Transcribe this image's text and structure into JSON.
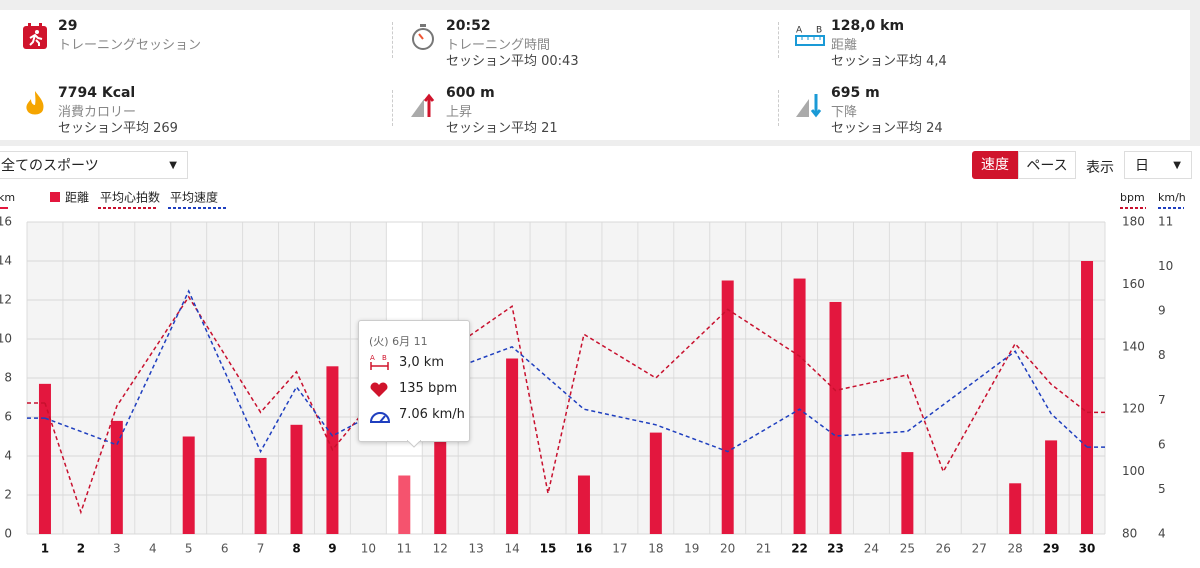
{
  "header": {
    "stats": [
      {
        "value": "29",
        "label": "トレーニングセッション"
      },
      {
        "value": "20:52",
        "label": "トレーニング時間",
        "sub": "セッション平均 00:43"
      },
      {
        "value": "128,0 km",
        "label": "距離",
        "sub": "セッション平均 4,4"
      },
      {
        "value": "7794 Kcal",
        "label": "消費カロリー",
        "sub": "セッション平均 269"
      },
      {
        "value": "600 m",
        "label": "上昇",
        "sub": "セッション平均 21"
      },
      {
        "value": "695 m",
        "label": "下降",
        "sub": "セッション平均 24"
      }
    ]
  },
  "controls": {
    "sport": "全てのスポーツ",
    "speed": "速度",
    "pace": "ペース",
    "view_label": "表示",
    "view": "日"
  },
  "tooltip": {
    "title": "(火) 6月 11",
    "distance": "3,0 km",
    "heart_rate": "135 bpm",
    "speed": "7.06 km/h"
  },
  "chart_data": {
    "type": "bar",
    "y_label": "km",
    "y2_label": "bpm",
    "y3_label": "km/h",
    "xlim": [
      0.5,
      30.5
    ],
    "xticks": [
      1,
      2,
      3,
      4,
      5,
      6,
      7,
      8,
      9,
      10,
      11,
      12,
      13,
      14,
      15,
      16,
      17,
      18,
      19,
      20,
      21,
      22,
      23,
      24,
      25,
      26,
      27,
      28,
      29,
      30
    ],
    "highlight_x": 11,
    "ylim": [
      0,
      16
    ],
    "yticks": [
      0,
      2,
      4,
      6,
      8,
      10,
      12,
      14,
      16
    ],
    "y2lim": [
      80,
      180
    ],
    "y2ticks": [
      80,
      100,
      120,
      140,
      160,
      180
    ],
    "y3lim": [
      4,
      11
    ],
    "y3ticks": [
      4,
      5,
      6,
      7,
      8,
      9,
      10,
      11
    ],
    "grid": true,
    "series": [
      {
        "name": "距離",
        "type": "bar",
        "axis": "y",
        "color": "#e3173e",
        "highlight_color": "#f5536e",
        "x": [
          1,
          3,
          5,
          7,
          8,
          9,
          11,
          12,
          14,
          16,
          18,
          20,
          22,
          23,
          25,
          28,
          29,
          30
        ],
        "values": [
          7.7,
          5.8,
          5.0,
          3.9,
          5.6,
          8.6,
          3.0,
          5.0,
          9.0,
          3.0,
          5.2,
          13.0,
          13.1,
          11.9,
          4.2,
          2.6,
          4.8,
          14.0
        ]
      },
      {
        "name": "平均心拍数",
        "type": "line",
        "axis": "y2",
        "color": "#c8102e",
        "x": [
          1,
          2,
          3,
          5,
          7,
          8,
          9,
          11,
          12,
          14,
          15,
          16,
          18,
          20,
          22,
          23,
          25,
          26,
          28,
          29,
          30
        ],
        "values": [
          122,
          87,
          121,
          156,
          119,
          132,
          107,
          135,
          137,
          153,
          93,
          144,
          130,
          152,
          137,
          126,
          131,
          100,
          141,
          128,
          119
        ]
      },
      {
        "name": "平均速度",
        "type": "line",
        "axis": "y3",
        "color": "#1f3fbf",
        "x": [
          1,
          3,
          5,
          7,
          8,
          9,
          11,
          12,
          14,
          16,
          18,
          20,
          22,
          23,
          25,
          28,
          29,
          30
        ],
        "values": [
          6.6,
          6.0,
          9.45,
          5.85,
          7.3,
          6.2,
          7.06,
          7.6,
          8.2,
          6.8,
          6.45,
          5.85,
          6.8,
          6.2,
          6.3,
          8.1,
          6.7,
          5.95
        ]
      }
    ]
  }
}
